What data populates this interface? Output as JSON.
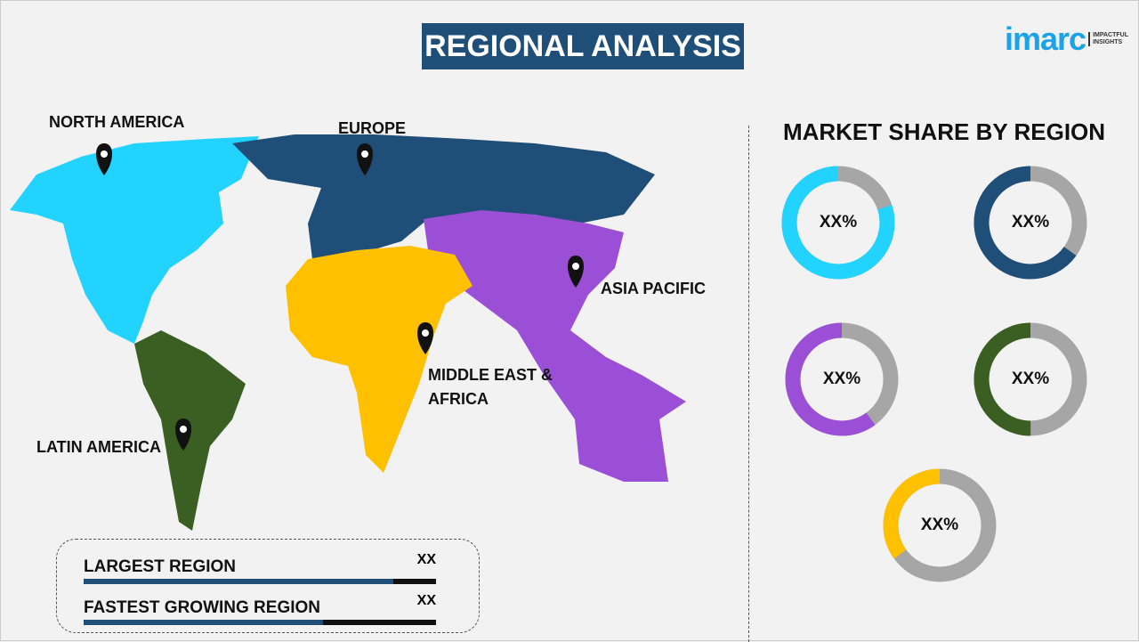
{
  "header": {
    "title": "REGIONAL ANALYSIS",
    "logo_main": "imarc",
    "logo_tagline": "IMPACTFUL INSIGHTS"
  },
  "map": {
    "regions": [
      {
        "label": "NORTH AMERICA",
        "color": "#22d3ff"
      },
      {
        "label": "EUROPE",
        "color": "#1f4e79"
      },
      {
        "label": "ASIA PACIFIC",
        "color": "#9b4fd6"
      },
      {
        "label": "MIDDLE EAST & AFRICA",
        "color": "#ffc000"
      },
      {
        "label": "LATIN AMERICA",
        "color": "#3b5e22"
      }
    ],
    "icon": "map-pin-icon"
  },
  "market_share": {
    "title": "MARKET SHARE BY REGION",
    "remainder_color": "#a6a6a6",
    "donuts": [
      {
        "region": "North America",
        "value_label": "XX%",
        "fill": 0.8,
        "color": "#22d3ff"
      },
      {
        "region": "Europe",
        "value_label": "XX%",
        "fill": 0.65,
        "color": "#1f4e79"
      },
      {
        "region": "Asia Pacific",
        "value_label": "XX%",
        "fill": 0.6,
        "color": "#9b4fd6"
      },
      {
        "region": "Latin America",
        "value_label": "XX%",
        "fill": 0.5,
        "color": "#3b5e22"
      },
      {
        "region": "Middle East & Africa",
        "value_label": "XX%",
        "fill": 0.35,
        "color": "#ffc000"
      }
    ]
  },
  "summary": [
    {
      "label": "LARGEST REGION",
      "value": "XX",
      "bar_fill": 0.88
    },
    {
      "label": "FASTEST GROWING REGION",
      "value": "XX",
      "bar_fill": 0.68
    }
  ]
}
